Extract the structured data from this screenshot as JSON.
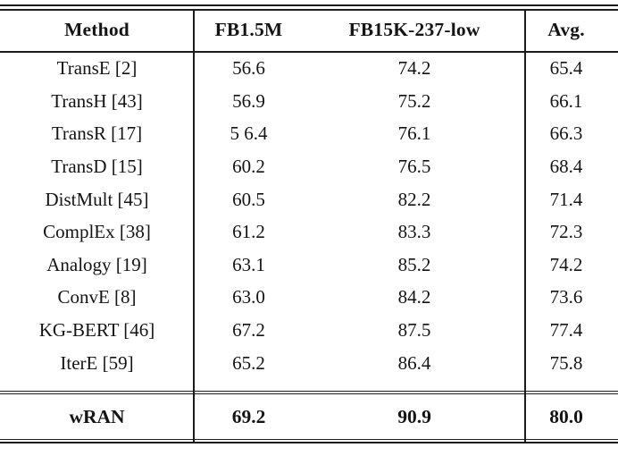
{
  "table": {
    "header": {
      "method": "Method",
      "dataset1": "FB1.5M",
      "dataset2": "FB15K-237-low",
      "avg": "Avg."
    },
    "rows": [
      {
        "method": "TransE [2]",
        "fb15m": "56.6",
        "fb15k237low": "74.2",
        "avg": "65.4"
      },
      {
        "method": "TransH [43]",
        "fb15m": "56.9",
        "fb15k237low": "75.2",
        "avg": "66.1"
      },
      {
        "method": "TransR [17]",
        "fb15m": "5 6.4",
        "fb15k237low": "76.1",
        "avg": "66.3"
      },
      {
        "method": "TransD [15]",
        "fb15m": "60.2",
        "fb15k237low": "76.5",
        "avg": "68.4"
      },
      {
        "method": "DistMult [45]",
        "fb15m": "60.5",
        "fb15k237low": "82.2",
        "avg": "71.4"
      },
      {
        "method": "ComplEx [38]",
        "fb15m": "61.2",
        "fb15k237low": "83.3",
        "avg": "72.3"
      },
      {
        "method": "Analogy [19]",
        "fb15m": "63.1",
        "fb15k237low": "85.2",
        "avg": "74.2"
      },
      {
        "method": "ConvE [8]",
        "fb15m": "63.0",
        "fb15k237low": "84.2",
        "avg": "73.6"
      },
      {
        "method": "KG-BERT [46]",
        "fb15m": "67.2",
        "fb15k237low": "87.5",
        "avg": "77.4"
      },
      {
        "method": "IterE [59]",
        "fb15m": "65.2",
        "fb15k237low": "86.4",
        "avg": "75.8"
      }
    ],
    "footer": {
      "method": "wRAN",
      "fb15m": "69.2",
      "fb15k237low": "90.9",
      "avg": "80.0"
    }
  },
  "colors": {
    "text": "#141414",
    "rule": "#1c1c1c",
    "background": "#ffffff"
  }
}
